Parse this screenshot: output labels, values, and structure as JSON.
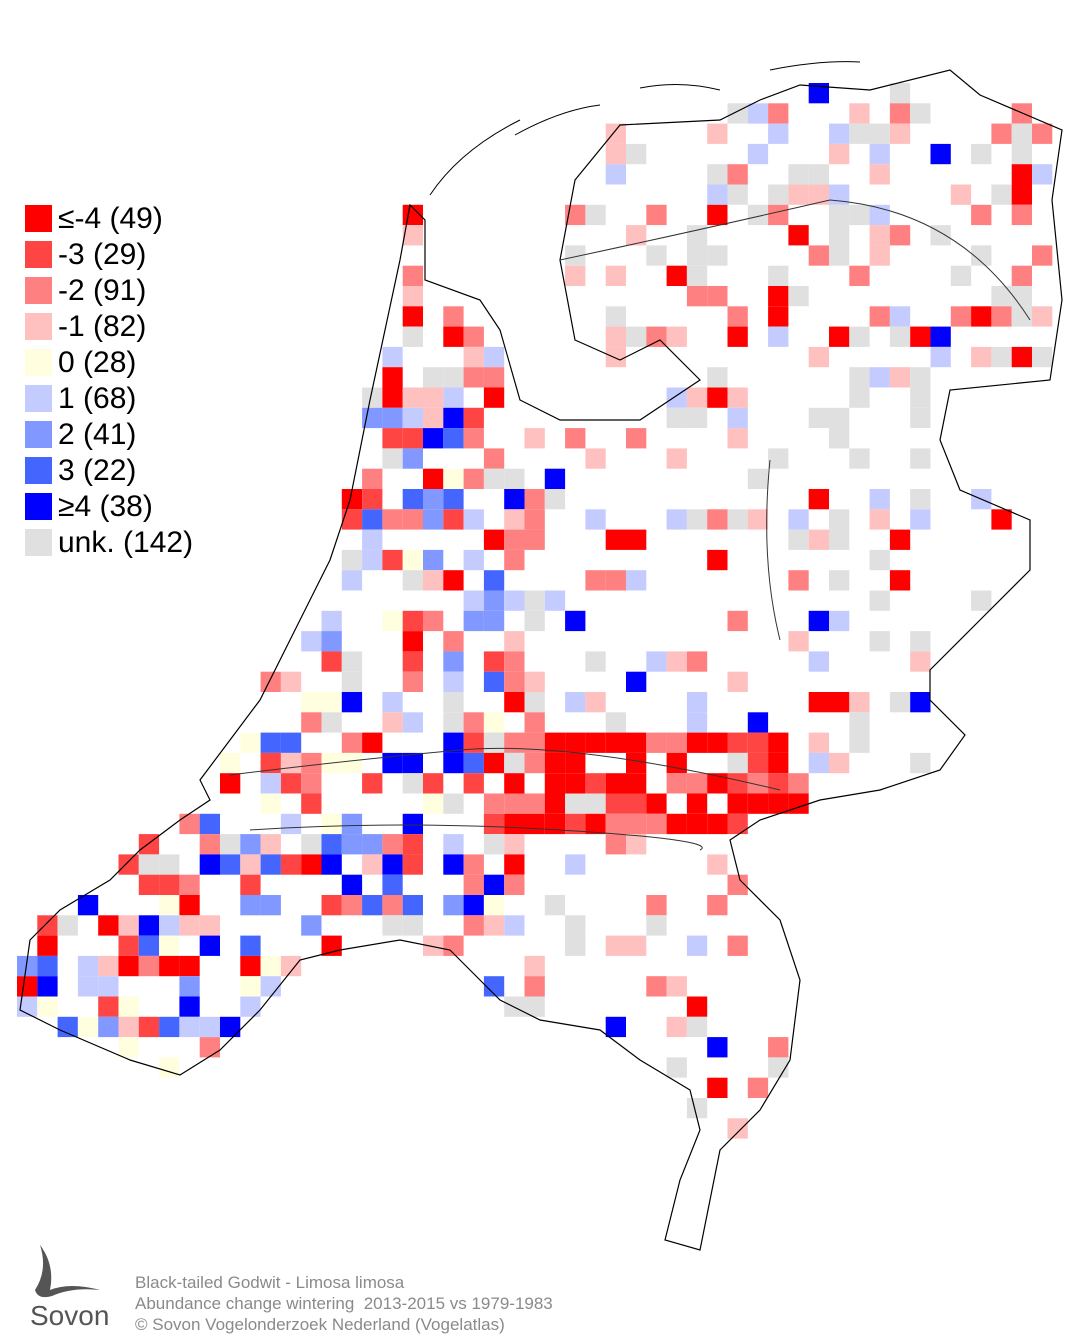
{
  "legend": [
    {
      "label": "≤-4 (49)",
      "color": "#ff0000"
    },
    {
      "label": "-3 (29)",
      "color": "#ff4444"
    },
    {
      "label": "-2 (91)",
      "color": "#ff8080"
    },
    {
      "label": "-1 (82)",
      "color": "#ffc0c0"
    },
    {
      "label": "0 (28)",
      "color": "#ffffe0"
    },
    {
      "label": "1 (68)",
      "color": "#c4ccff"
    },
    {
      "label": "2 (41)",
      "color": "#8098ff"
    },
    {
      "label": "3 (22)",
      "color": "#4466ff"
    },
    {
      "label": "≥4 (38)",
      "color": "#0000ff"
    },
    {
      "label": "unk. (142)",
      "color": "#e0e0e0"
    }
  ],
  "caption": {
    "species": "Black-tailed Godwit - Limosa limosa",
    "subtitle": "Abundance change wintering  2013-2015 vs 1979-1983",
    "copyright": "© Sovon Vogelonderzoek Nederland (Vogelatlas)"
  },
  "logo": "Sovon"
}
